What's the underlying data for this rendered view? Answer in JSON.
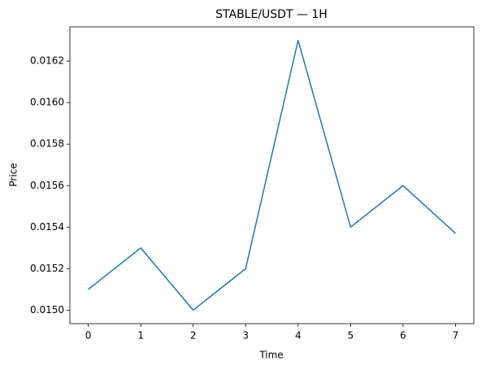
{
  "chart_data": {
    "type": "line",
    "title": "STABLE/USDT — 1H",
    "x_label": "Time",
    "y_label": "Price",
    "x": [
      0,
      1,
      2,
      3,
      4,
      5,
      6,
      7
    ],
    "values": [
      0.0151,
      0.0153,
      0.015,
      0.0152,
      0.0163,
      0.0154,
      0.0156,
      0.01537
    ],
    "color": "#1f77b4",
    "xlim": [
      -0.35,
      7.35
    ],
    "xticks": [
      0,
      1,
      2,
      3,
      4,
      5,
      6,
      7
    ],
    "ylim": [
      0.014935,
      0.016365
    ],
    "yticks": [
      {
        "value": 0.015,
        "label": "0.0150"
      },
      {
        "value": 0.0152,
        "label": "0.0152"
      },
      {
        "value": 0.0154,
        "label": "0.0154"
      },
      {
        "value": 0.0156,
        "label": "0.0156"
      },
      {
        "value": 0.0158,
        "label": "0.0158"
      },
      {
        "value": 0.016,
        "label": "0.0160"
      },
      {
        "value": 0.0162,
        "label": "0.0162"
      }
    ],
    "grid": false
  }
}
